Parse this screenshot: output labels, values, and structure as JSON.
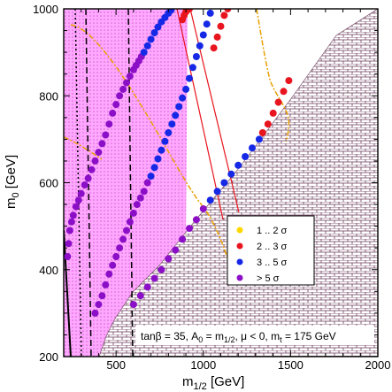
{
  "chart_data": {
    "type": "scatter",
    "x_range": [
      200,
      2000
    ],
    "y_range": [
      200,
      1000
    ],
    "x_ticks": [
      "500",
      "1000",
      "1500",
      "2000"
    ],
    "y_ticks": [
      "200",
      "400",
      "600",
      "800",
      "1000"
    ],
    "xlabel_main": "m",
    "xlabel_sub": "1/2",
    "xlabel_unit": " [GeV]",
    "ylabel_main": "m",
    "ylabel_sub": "0",
    "ylabel_unit": " [GeV]",
    "annotation": {
      "part1": "tanβ = 35, A",
      "sub1": "0",
      "part2": " = m",
      "sub2": "1/2",
      "part3": ", μ < 0, m",
      "sub3": "t",
      "part4": " = 175 GeV"
    },
    "legend": [
      {
        "label": "1 .. 2 σ",
        "color": "#ffd700"
      },
      {
        "label": "2 .. 3 σ",
        "color": "#e8141e"
      },
      {
        "label": "3 .. 5 σ",
        "color": "#1428e6"
      },
      {
        "label": "> 5 σ",
        "color": "#8c0fc8"
      }
    ],
    "colors": {
      "magenta_band": "#ff55ff",
      "excluded_region": "#7a4a6a",
      "orange_curve": "#e8a000",
      "red_line": "#e8141e"
    },
    "series": [
      {
        "color": "#8c0fc8",
        "points": [
          [
            222,
            430
          ],
          [
            228,
            460
          ],
          [
            235,
            490
          ],
          [
            245,
            510
          ],
          [
            255,
            525
          ],
          [
            270,
            545
          ],
          [
            285,
            560
          ],
          [
            300,
            575
          ],
          [
            320,
            595
          ],
          [
            340,
            610
          ],
          [
            360,
            630
          ],
          [
            380,
            650
          ],
          [
            400,
            670
          ],
          [
            420,
            690
          ],
          [
            440,
            710
          ],
          [
            460,
            735
          ],
          [
            480,
            760
          ],
          [
            500,
            780
          ],
          [
            520,
            800
          ],
          [
            540,
            815
          ],
          [
            560,
            830
          ],
          [
            580,
            845
          ],
          [
            600,
            860
          ],
          [
            615,
            870
          ],
          [
            630,
            880
          ],
          [
            645,
            890
          ]
        ]
      },
      {
        "color": "#1428e6",
        "points": [
          [
            660,
            900
          ],
          [
            680,
            915
          ],
          [
            700,
            930
          ],
          [
            720,
            945
          ],
          [
            740,
            958
          ],
          [
            760,
            970
          ],
          [
            780,
            980
          ],
          [
            800,
            990
          ],
          [
            815,
            997
          ]
        ]
      },
      {
        "color": "#e8141e",
        "points": [
          [
            880,
            975
          ],
          [
            890,
            985
          ],
          [
            900,
            993
          ],
          [
            910,
            998
          ],
          [
            920,
            1000
          ]
        ]
      },
      {
        "color": "#8c0fc8",
        "points": [
          [
            380,
            300
          ],
          [
            400,
            320
          ],
          [
            420,
            340
          ],
          [
            440,
            365
          ],
          [
            460,
            390
          ],
          [
            480,
            410
          ],
          [
            500,
            430
          ],
          [
            520,
            450
          ],
          [
            540,
            470
          ],
          [
            560,
            490
          ],
          [
            580,
            510
          ],
          [
            600,
            530
          ],
          [
            620,
            550
          ],
          [
            640,
            565
          ],
          [
            660,
            580
          ],
          [
            680,
            600
          ]
        ]
      },
      {
        "color": "#1428e6",
        "points": [
          [
            700,
            615
          ],
          [
            720,
            635
          ],
          [
            740,
            655
          ],
          [
            760,
            675
          ],
          [
            780,
            695
          ],
          [
            800,
            715
          ],
          [
            820,
            735
          ],
          [
            840,
            755
          ],
          [
            860,
            775
          ],
          [
            880,
            795
          ],
          [
            900,
            815
          ],
          [
            920,
            840
          ],
          [
            940,
            865
          ],
          [
            960,
            890
          ],
          [
            980,
            915
          ],
          [
            1000,
            940
          ],
          [
            1020,
            965
          ],
          [
            1040,
            990
          ]
        ]
      },
      {
        "color": "#e8141e",
        "points": [
          [
            1060,
            910
          ],
          [
            1080,
            935
          ],
          [
            1100,
            960
          ],
          [
            1120,
            985
          ],
          [
            1140,
            1000
          ]
        ]
      },
      {
        "color": "#8c0fc8",
        "points": [
          [
            600,
            320
          ],
          [
            640,
            340
          ],
          [
            680,
            360
          ],
          [
            720,
            380
          ],
          [
            760,
            400
          ],
          [
            800,
            425
          ],
          [
            840,
            445
          ],
          [
            880,
            470
          ],
          [
            920,
            495
          ],
          [
            960,
            515
          ],
          [
            1000,
            540
          ]
        ]
      },
      {
        "color": "#1428e6",
        "points": [
          [
            1040,
            560
          ],
          [
            1080,
            580
          ],
          [
            1120,
            600
          ],
          [
            1160,
            620
          ],
          [
            1200,
            640
          ],
          [
            1240,
            660
          ],
          [
            1280,
            680
          ],
          [
            1320,
            700
          ]
        ]
      },
      {
        "color": "#e8141e",
        "points": [
          [
            1340,
            715
          ],
          [
            1370,
            735
          ],
          [
            1400,
            760
          ],
          [
            1430,
            785
          ],
          [
            1460,
            810
          ],
          [
            1490,
            835
          ]
        ]
      }
    ]
  }
}
